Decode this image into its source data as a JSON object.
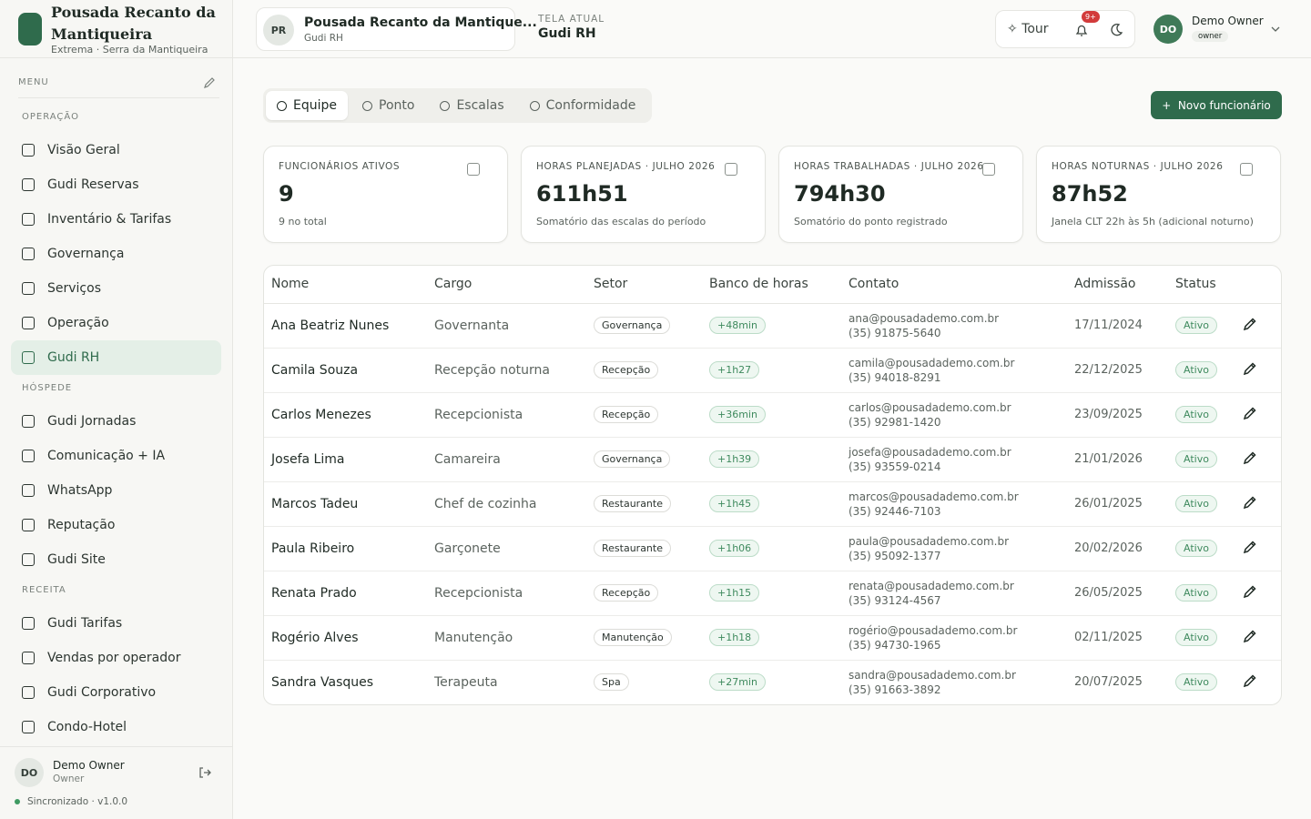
{
  "sidebar": {
    "brand_title": "Pousada Recanto da Mantiqueira",
    "brand_subtitle": "Extrema · Serra da Mantiqueira",
    "menu_label": "MENU",
    "sections": [
      {
        "title": "OPERAÇÃO",
        "items": [
          {
            "label": "Visão Geral"
          },
          {
            "label": "Gudi Reservas"
          },
          {
            "label": "Inventário & Tarifas"
          },
          {
            "label": "Governança"
          },
          {
            "label": "Serviços"
          },
          {
            "label": "Operação"
          },
          {
            "label": "Gudi RH",
            "active": true
          }
        ]
      },
      {
        "title": "HÓSPEDE",
        "items": [
          {
            "label": "Gudi Jornadas"
          },
          {
            "label": "Comunicação + IA"
          },
          {
            "label": "WhatsApp"
          },
          {
            "label": "Reputação"
          },
          {
            "label": "Gudi Site"
          }
        ]
      },
      {
        "title": "RECEITA",
        "items": [
          {
            "label": "Gudi Tarifas"
          },
          {
            "label": "Vendas por operador"
          },
          {
            "label": "Gudi Corporativo"
          },
          {
            "label": "Condo-Hotel"
          }
        ]
      }
    ],
    "user": {
      "initials": "DO",
      "name": "Demo Owner",
      "role": "Owner"
    },
    "status": "Sincronizado · v1.0.0"
  },
  "header": {
    "property_initials": "PR",
    "property_name": "Pousada Recanto da Mantique...",
    "property_sub": "Gudi RH",
    "current_label": "TELA ATUAL",
    "current_screen": "Gudi RH",
    "tour": "Tour",
    "notifications": "9+",
    "user_initials": "DO",
    "user_name": "Demo Owner",
    "user_role": "owner"
  },
  "tabs": [
    {
      "label": "Equipe",
      "active": true
    },
    {
      "label": "Ponto"
    },
    {
      "label": "Escalas"
    },
    {
      "label": "Conformidade"
    }
  ],
  "new_button": "Novo funcionário",
  "kpis": [
    {
      "label": "FUNCIONÁRIOS ATIVOS",
      "value": "9",
      "note": "9 no total"
    },
    {
      "label": "HORAS PLANEJADAS · JULHO 2026",
      "value": "611h51",
      "note": "Somatório das escalas do período"
    },
    {
      "label": "HORAS TRABALHADAS · JULHO 2026",
      "value": "794h30",
      "note": "Somatório do ponto registrado"
    },
    {
      "label": "HORAS NOTURNAS · JULHO 2026",
      "value": "87h52",
      "note": "Janela CLT 22h às 5h (adicional noturno)"
    }
  ],
  "table": {
    "columns": [
      "Nome",
      "Cargo",
      "Setor",
      "Banco de horas",
      "Contato",
      "Admissão",
      "Status"
    ],
    "rows": [
      {
        "name": "Ana Beatriz Nunes",
        "role": "Governanta",
        "sector": "Governança",
        "bank": "+48min",
        "email": "ana@pousadademo.com.br",
        "phone": "(35) 91875-5640",
        "admission": "17/11/2024",
        "status": "Ativo"
      },
      {
        "name": "Camila Souza",
        "role": "Recepção noturna",
        "sector": "Recepção",
        "bank": "+1h27",
        "email": "camila@pousadademo.com.br",
        "phone": "(35) 94018-8291",
        "admission": "22/12/2025",
        "status": "Ativo"
      },
      {
        "name": "Carlos Menezes",
        "role": "Recepcionista",
        "sector": "Recepção",
        "bank": "+36min",
        "email": "carlos@pousadademo.com.br",
        "phone": "(35) 92981-1420",
        "admission": "23/09/2025",
        "status": "Ativo"
      },
      {
        "name": "Josefa Lima",
        "role": "Camareira",
        "sector": "Governança",
        "bank": "+1h39",
        "email": "josefa@pousadademo.com.br",
        "phone": "(35) 93559-0214",
        "admission": "21/01/2026",
        "status": "Ativo"
      },
      {
        "name": "Marcos Tadeu",
        "role": "Chef de cozinha",
        "sector": "Restaurante",
        "bank": "+1h45",
        "email": "marcos@pousadademo.com.br",
        "phone": "(35) 92446-7103",
        "admission": "26/01/2025",
        "status": "Ativo"
      },
      {
        "name": "Paula Ribeiro",
        "role": "Garçonete",
        "sector": "Restaurante",
        "bank": "+1h06",
        "email": "paula@pousadademo.com.br",
        "phone": "(35) 95092-1377",
        "admission": "20/02/2026",
        "status": "Ativo"
      },
      {
        "name": "Renata Prado",
        "role": "Recepcionista",
        "sector": "Recepção",
        "bank": "+1h15",
        "email": "renata@pousadademo.com.br",
        "phone": "(35) 93124-4567",
        "admission": "26/05/2025",
        "status": "Ativo"
      },
      {
        "name": "Rogério Alves",
        "role": "Manutenção",
        "sector": "Manutenção",
        "bank": "+1h18",
        "email": "rogério@pousadademo.com.br",
        "phone": "(35) 94730-1965",
        "admission": "02/11/2025",
        "status": "Ativo"
      },
      {
        "name": "Sandra Vasques",
        "role": "Terapeuta",
        "sector": "Spa",
        "bank": "+27min",
        "email": "sandra@pousadademo.com.br",
        "phone": "(35) 91663-3892",
        "admission": "20/07/2025",
        "status": "Ativo"
      }
    ]
  }
}
